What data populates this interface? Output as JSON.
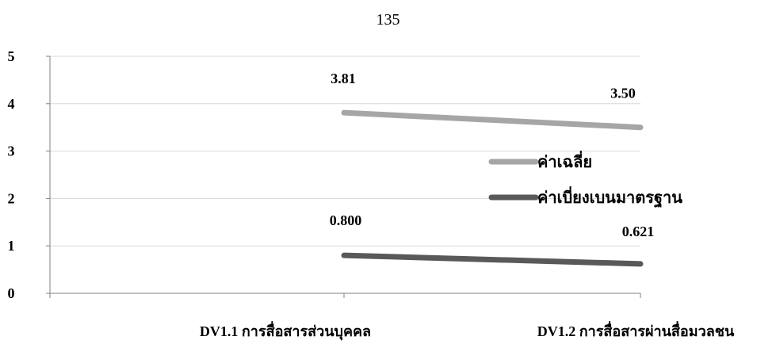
{
  "page": {
    "page_number": "135"
  },
  "chart_data": {
    "type": "line",
    "title": "",
    "xlabel": "",
    "ylabel": "",
    "categories": [
      "DV1.1 การสื่อสารส่วนบุคคล",
      "DV1.2 การสื่อสารผ่านสื่อมวลชน"
    ],
    "series": [
      {
        "name": "ค่าเฉลี่ย",
        "values": [
          3.81,
          3.5
        ],
        "labels": [
          "3.81",
          "3.50"
        ],
        "color": "#a6a6a6"
      },
      {
        "name": "ค่าเบี่ยงเบนมาตรฐาน",
        "values": [
          0.8,
          0.621
        ],
        "labels": [
          "0.800",
          "0.621"
        ],
        "color": "#595959"
      }
    ],
    "ylim": [
      0,
      5
    ],
    "yticks": [
      "0",
      "1",
      "2",
      "3",
      "4",
      "5"
    ],
    "grid": true,
    "legend_position": "right"
  }
}
